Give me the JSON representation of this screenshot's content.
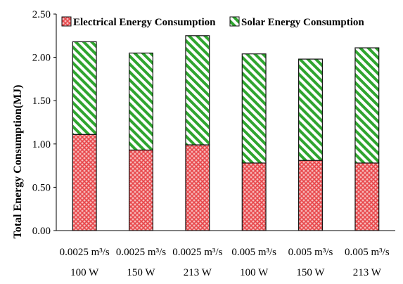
{
  "chart_data": {
    "type": "bar",
    "stacked": true,
    "title": "",
    "ylabel": "Total Energy Consumption(MJ)",
    "xlabel": "",
    "ylim": [
      0,
      2.5
    ],
    "yticks": [
      "0.00",
      "0.50",
      "1.00",
      "1.50",
      "2.00",
      "2.50"
    ],
    "categories": [
      {
        "flow": "0.0025 m³/s",
        "power": "100 W"
      },
      {
        "flow": "0.0025 m³/s",
        "power": "150 W"
      },
      {
        "flow": "0.0025 m³/s",
        "power": "213 W"
      },
      {
        "flow": "0.005 m³/s",
        "power": "100 W"
      },
      {
        "flow": "0.005 m³/s",
        "power": "150 W"
      },
      {
        "flow": "0.005 m³/s",
        "power": "213 W"
      }
    ],
    "series": [
      {
        "name": "Electrical Energy Consumption",
        "values": [
          1.11,
          0.93,
          0.99,
          0.78,
          0.81,
          0.78
        ],
        "color": "#e8474b",
        "pattern": "crosshatch"
      },
      {
        "name": "Solar Energy Consumption",
        "values": [
          1.07,
          1.12,
          1.26,
          1.26,
          1.17,
          1.33
        ],
        "color": "#2fa52f",
        "pattern": "diagonal-stripes"
      }
    ],
    "legend_position": "top",
    "grid": false
  }
}
